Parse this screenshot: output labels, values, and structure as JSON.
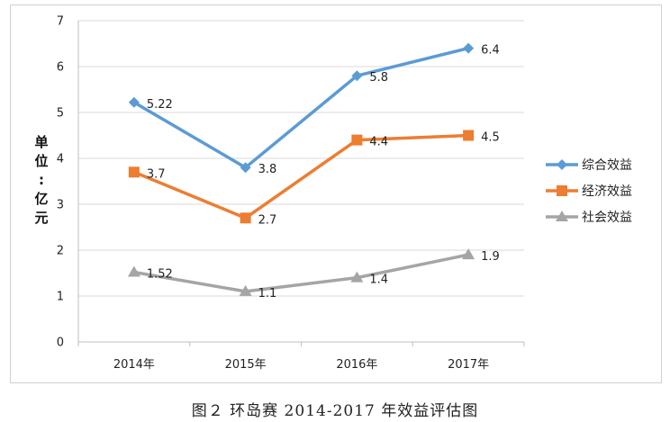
{
  "chart_data": {
    "type": "line",
    "categories": [
      "2014年",
      "2015年",
      "2016年",
      "2017年"
    ],
    "ylabel": "单位：亿元",
    "ylim": [
      0,
      7
    ],
    "yticks": [
      "0",
      "1",
      "2",
      "3",
      "4",
      "5",
      "6",
      "7"
    ],
    "grid": true,
    "legend_position": "right",
    "series": [
      {
        "name": "综合效益",
        "values": [
          5.22,
          3.8,
          5.8,
          6.4
        ],
        "labels": [
          "5.22",
          "3.8",
          "5.8",
          "6.4"
        ],
        "color": "#5b9bd5",
        "marker": "diamond"
      },
      {
        "name": "经济效益",
        "values": [
          3.7,
          2.7,
          4.4,
          4.5
        ],
        "labels": [
          "3.7",
          "2.7",
          "4.4",
          "4.5"
        ],
        "color": "#ed7d31",
        "marker": "square"
      },
      {
        "name": "社会效益",
        "values": [
          1.52,
          1.1,
          1.4,
          1.9
        ],
        "labels": [
          "1.52",
          "1.1",
          "1.4",
          "1.9"
        ],
        "color": "#a5a5a5",
        "marker": "triangle"
      }
    ]
  },
  "caption": "图２  环岛赛 2014-2017 年效益评估图"
}
